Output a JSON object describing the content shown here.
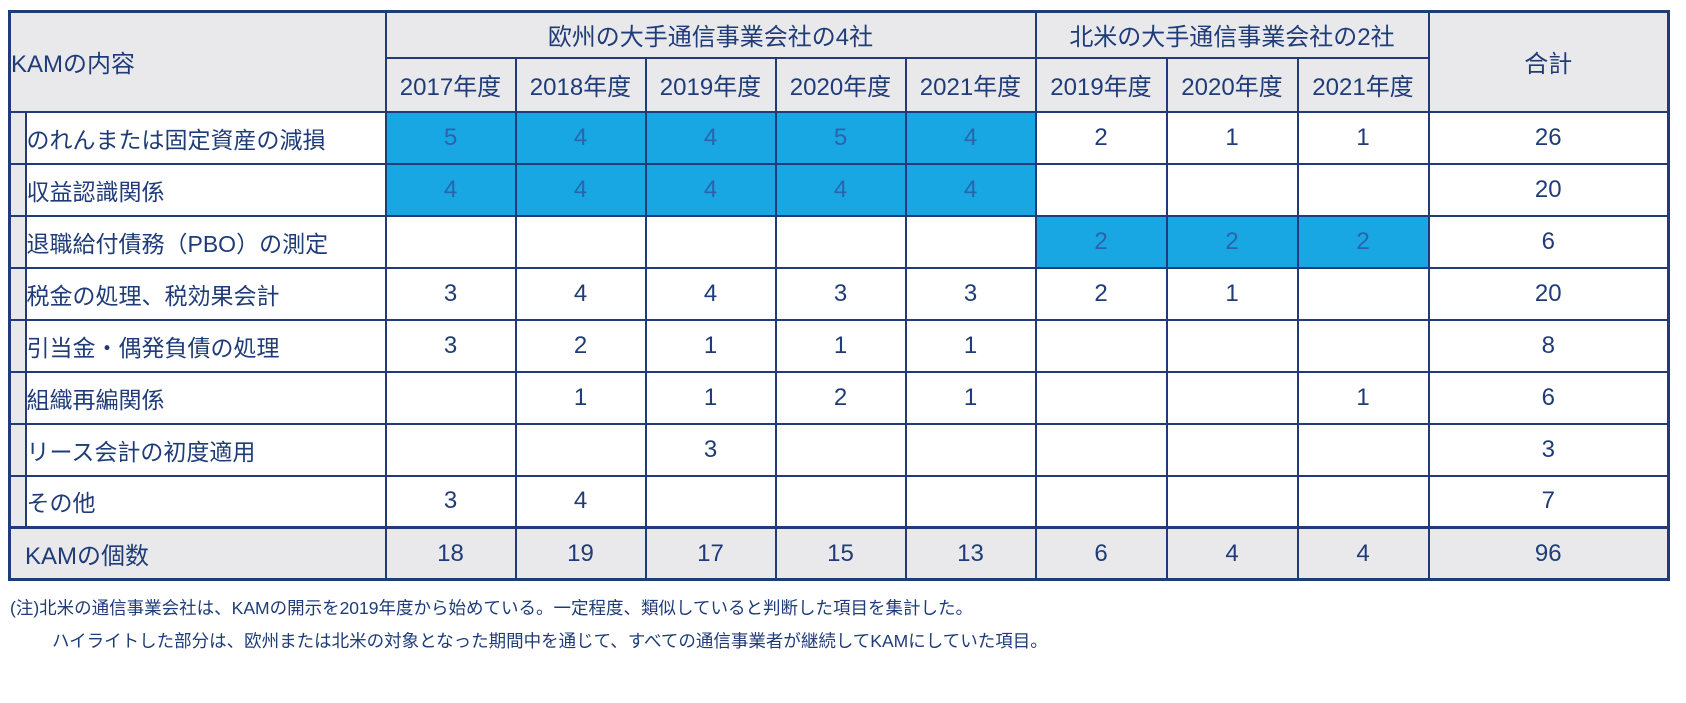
{
  "table": {
    "corner_label": "KAMの内容",
    "groups": [
      {
        "label": "欧州の大手通信事業会社の4社",
        "years": [
          "2017年度",
          "2018年度",
          "2019年度",
          "2020年度",
          "2021年度"
        ]
      },
      {
        "label": "北米の大手通信事業会社の2社",
        "years": [
          "2019年度",
          "2020年度",
          "2021年度"
        ]
      }
    ],
    "total_label": "合計",
    "rows": [
      {
        "label": "のれんまたは固定資産の減損",
        "values": [
          "5",
          "4",
          "4",
          "5",
          "4",
          "2",
          "1",
          "1"
        ],
        "highlight": [
          0,
          1,
          2,
          3,
          4
        ],
        "total": "26"
      },
      {
        "label": "収益認識関係",
        "values": [
          "4",
          "4",
          "4",
          "4",
          "4",
          "",
          "",
          ""
        ],
        "highlight": [
          0,
          1,
          2,
          3,
          4
        ],
        "total": "20"
      },
      {
        "label": "退職給付債務（PBO）の測定",
        "values": [
          "",
          "",
          "",
          "",
          "",
          "2",
          "2",
          "2"
        ],
        "highlight": [
          5,
          6,
          7
        ],
        "total": "6"
      },
      {
        "label": "税金の処理、税効果会計",
        "values": [
          "3",
          "4",
          "4",
          "3",
          "3",
          "2",
          "1",
          ""
        ],
        "highlight": [],
        "total": "20"
      },
      {
        "label": "引当金・偶発負債の処理",
        "values": [
          "3",
          "2",
          "1",
          "1",
          "1",
          "",
          "",
          ""
        ],
        "highlight": [],
        "total": "8"
      },
      {
        "label": "組織再編関係",
        "values": [
          "",
          "1",
          "1",
          "2",
          "1",
          "",
          "",
          "1"
        ],
        "highlight": [],
        "total": "6"
      },
      {
        "label": "リース会計の初度適用",
        "values": [
          "",
          "",
          "3",
          "",
          "",
          "",
          "",
          ""
        ],
        "highlight": [],
        "total": "3"
      },
      {
        "label": "その他",
        "values": [
          "3",
          "4",
          "",
          "",
          "",
          "",
          "",
          ""
        ],
        "highlight": [],
        "total": "7"
      }
    ],
    "footer": {
      "label": "KAMの個数",
      "values": [
        "18",
        "19",
        "17",
        "15",
        "13",
        "6",
        "4",
        "4"
      ],
      "total": "96"
    }
  },
  "notes": [
    "(注)北米の通信事業会社は、KAMの開示を2019年度から始めている。一定程度、類似していると判断した項目を集計した。",
    "ハイライトした部分は、欧州または北米の対象となった期間中を通じて、すべての通信事業者が継続してKAMにしていた項目。"
  ],
  "colors": {
    "highlight": "#18a7e2",
    "highlight_text": "#2b63ad",
    "header_bg": "#e9e9ec",
    "text": "#1f3c78"
  }
}
